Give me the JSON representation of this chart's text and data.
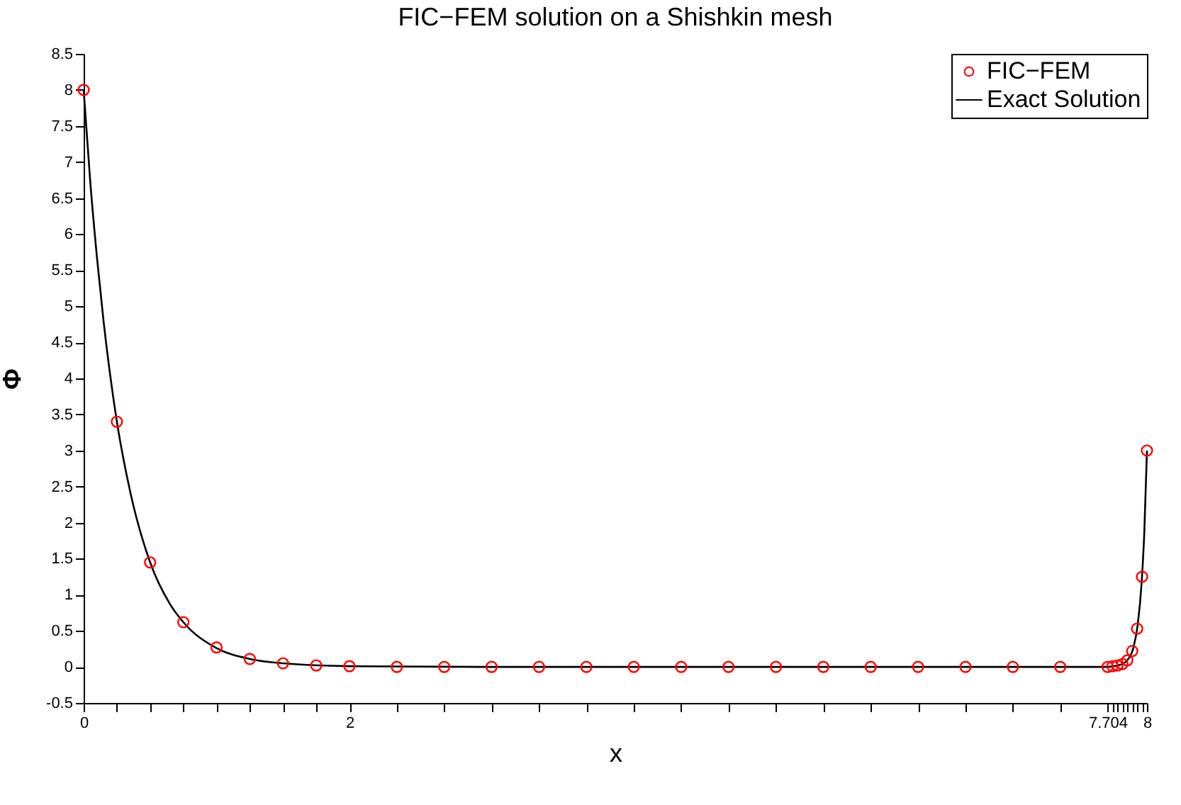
{
  "chart_data": {
    "type": "scatter",
    "title": "FIC−FEM solution on a Shishkin mesh",
    "xlabel": "x",
    "ylabel": "Φ",
    "xlim": [
      0,
      8
    ],
    "ylim": [
      -0.5,
      8.5
    ],
    "xticks": [
      0,
      {
        "value": 0.25,
        "label": null
      },
      {
        "value": 0.5,
        "label": null
      },
      {
        "value": 0.75,
        "label": null
      },
      {
        "value": 1,
        "label": null
      },
      {
        "value": 1.25,
        "label": null
      },
      {
        "value": 1.5,
        "label": null
      },
      {
        "value": 1.75,
        "label": null
      },
      2,
      {
        "value": 2.3565,
        "label": null
      },
      {
        "value": 2.713,
        "label": null
      },
      {
        "value": 3.0695,
        "label": null
      },
      {
        "value": 3.426,
        "label": null
      },
      {
        "value": 3.7825,
        "label": null
      },
      {
        "value": 4.139,
        "label": null
      },
      {
        "value": 4.4955,
        "label": null
      },
      {
        "value": 4.852,
        "label": null
      },
      {
        "value": 5.2085,
        "label": null
      },
      {
        "value": 5.565,
        "label": null
      },
      {
        "value": 5.9215,
        "label": null
      },
      {
        "value": 6.278,
        "label": null
      },
      {
        "value": 6.6345,
        "label": null
      },
      {
        "value": 6.991,
        "label": null
      },
      {
        "value": 7.3475,
        "label": null
      },
      7.704,
      {
        "value": 7.741,
        "label": null
      },
      {
        "value": 7.778,
        "label": null
      },
      {
        "value": 7.815,
        "label": null
      },
      {
        "value": 7.852,
        "label": null
      },
      {
        "value": 7.889,
        "label": null
      },
      {
        "value": 7.926,
        "label": null
      },
      {
        "value": 7.963,
        "label": null
      },
      8
    ],
    "yticks": [
      -0.5,
      0,
      0.5,
      1,
      1.5,
      2,
      2.5,
      3,
      3.5,
      4,
      4.5,
      5,
      5.5,
      6,
      6.5,
      7,
      7.5,
      8,
      8.5
    ],
    "legend": "top right",
    "grid": false,
    "series": [
      {
        "name": "FIC−FEM",
        "type": "scatter",
        "marker": "circle",
        "color": "#ff0000",
        "x": [
          0,
          0.25,
          0.5,
          0.75,
          1,
          1.25,
          1.5,
          1.75,
          2,
          2.3565,
          2.713,
          3.0695,
          3.426,
          3.7825,
          4.139,
          4.4955,
          4.852,
          5.2085,
          5.565,
          5.9215,
          6.278,
          6.6345,
          6.991,
          7.3475,
          7.704,
          7.741,
          7.778,
          7.815,
          7.852,
          7.889,
          7.926,
          7.963,
          8
        ],
        "values": [
          8,
          3.4,
          1.45,
          0.62,
          0.27,
          0.11,
          0.05,
          0.02,
          0.01,
          0,
          0,
          0,
          0,
          0,
          0,
          0,
          0,
          0,
          0,
          0,
          0,
          0,
          0,
          0,
          0,
          0.01,
          0.02,
          0.04,
          0.09,
          0.22,
          0.53,
          1.25,
          3
        ]
      },
      {
        "name": "Exact Solution",
        "type": "line",
        "marker": "none",
        "line_style": "solid",
        "color": "#000000",
        "x": [
          0,
          0.05,
          0.1,
          0.15,
          0.2,
          0.25,
          0.35,
          0.5,
          0.65,
          0.75,
          1,
          1.25,
          1.5,
          2,
          3,
          7.7,
          7.75,
          7.8,
          7.85,
          7.9,
          7.93,
          7.96,
          7.98,
          8
        ],
        "values": [
          8,
          6.72,
          5.68,
          4.79,
          4.04,
          3.4,
          2.43,
          1.45,
          0.87,
          0.62,
          0.26,
          0.11,
          0.05,
          0.01,
          0,
          0,
          0.01,
          0.03,
          0.09,
          0.28,
          0.58,
          1.17,
          1.87,
          3
        ]
      }
    ]
  }
}
